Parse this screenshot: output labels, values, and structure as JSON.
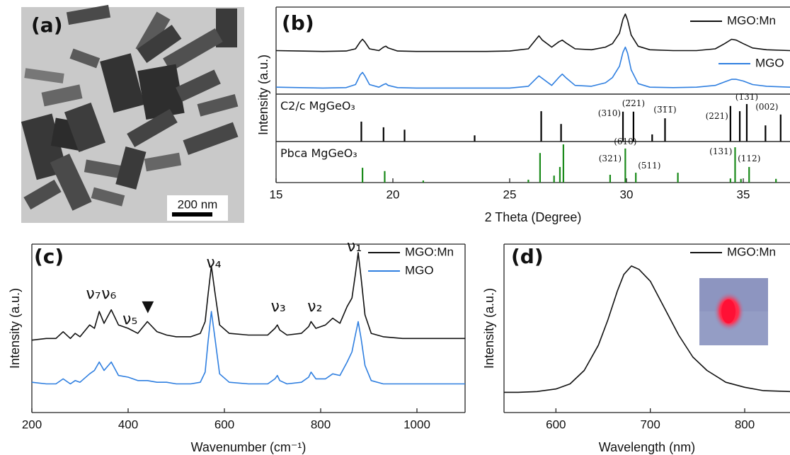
{
  "figure": {
    "panel_labels": [
      "(a)",
      "(b)",
      "(c)",
      "(d)"
    ]
  },
  "image_panel": {
    "scale_bar": "200 nm"
  },
  "chart_data": [
    {
      "type": "line",
      "ylabel": "Intensity (a.u.)",
      "xlim": [
        15,
        37
      ],
      "ylim": [
        0,
        100
      ],
      "x": [
        15,
        16,
        17,
        18,
        18.4,
        18.6,
        18.7,
        18.8,
        19.0,
        19.4,
        19.6,
        19.7,
        19.8,
        20.2,
        21,
        22,
        23,
        24,
        25,
        25.8,
        26.1,
        26.25,
        26.4,
        26.8,
        27.1,
        27.25,
        27.4,
        27.8,
        28.5,
        29.1,
        29.4,
        29.7,
        29.85,
        29.95,
        30.05,
        30.2,
        30.5,
        31,
        32,
        33,
        33.8,
        34.2,
        34.5,
        34.7,
        35,
        35.4,
        36,
        37
      ],
      "series": [
        {
          "name": "MGO:Mn",
          "color": "#111111",
          "values": [
            50,
            49.5,
            49,
            49.5,
            52,
            60,
            63,
            60,
            52,
            50,
            54,
            55,
            53,
            49.5,
            49,
            49,
            49,
            49,
            49.5,
            52,
            62,
            67,
            62,
            54,
            60,
            62,
            59,
            52,
            51,
            54,
            58,
            70,
            86,
            92,
            85,
            68,
            55,
            51,
            50,
            50,
            52,
            58,
            63,
            62,
            58,
            53,
            51,
            50
          ]
        },
        {
          "name": "MGO",
          "color": "#2f7fe0",
          "values": [
            8,
            7.5,
            7,
            7.5,
            11,
            22,
            25,
            21,
            11,
            8,
            11,
            12,
            10,
            7.5,
            7,
            7,
            7,
            7,
            7,
            9,
            17,
            21,
            18,
            10,
            19,
            23,
            19,
            10,
            9,
            13,
            19,
            32,
            48,
            54,
            47,
            28,
            12,
            8,
            7.5,
            8,
            10,
            14,
            17,
            17,
            15,
            11,
            9,
            8
          ]
        }
      ]
    },
    {
      "type": "stick",
      "title": "C2/c MgGeO₃",
      "color": "#000000",
      "label_color": "#2e6e8e",
      "xlim": [
        15,
        37
      ],
      "ylim": [
        0,
        100
      ],
      "x": [
        18.65,
        19.6,
        20.5,
        23.5,
        26.35,
        27.2,
        29.85,
        30.3,
        31.1,
        31.65,
        34.45,
        34.85,
        35.15,
        35.95,
        36.6
      ],
      "values": [
        42,
        30,
        25,
        13,
        64,
        37,
        63,
        63,
        15,
        49,
        75,
        64,
        79,
        34,
        57
      ],
      "labels": [
        null,
        null,
        null,
        null,
        null,
        null,
        "(310)",
        "(2̅21)",
        null,
        "(3̅1̅1̅)",
        "(221)",
        null,
        "(1̅31)",
        "(002)",
        null
      ]
    },
    {
      "type": "stick",
      "title": "Pbca MgGeO₃",
      "color": "#1a8a1a",
      "label_color": "#111111",
      "xlim": [
        15,
        37
      ],
      "ylim": [
        0,
        100
      ],
      "xlabel": "2 Theta (Degree)",
      "xticks": [
        15,
        20,
        25,
        30,
        35
      ],
      "x": [
        18.7,
        19.65,
        21.3,
        25.8,
        26.3,
        26.9,
        27.15,
        27.3,
        29.3,
        29.95,
        30.4,
        32.2,
        34.45,
        34.65,
        34.9,
        35.25,
        36.4
      ],
      "values": [
        36,
        28,
        5,
        7,
        72,
        17,
        38,
        93,
        19,
        83,
        24,
        24,
        10,
        86,
        9,
        38,
        9
      ],
      "labels": [
        null,
        null,
        null,
        null,
        null,
        null,
        null,
        null,
        "(321)",
        "(610)",
        "(511)",
        null,
        null,
        "(131)",
        null,
        "(112)",
        null
      ]
    },
    {
      "type": "line",
      "xlabel": "Wavenumber (cm⁻¹)",
      "ylabel": "Intensity (a.u.)",
      "xlim": [
        200,
        1100
      ],
      "ylim": [
        0,
        100
      ],
      "xticks": [
        200,
        400,
        600,
        800,
        1000
      ],
      "legend": "upper right",
      "annotations": [
        "ν₇",
        "ν₆",
        "ν₅",
        "▼",
        "ν₄",
        "ν₃",
        "ν₂",
        "ν₁"
      ],
      "x": [
        200,
        230,
        250,
        265,
        280,
        290,
        300,
        320,
        330,
        340,
        350,
        365,
        380,
        400,
        420,
        440,
        460,
        480,
        500,
        530,
        550,
        560,
        566,
        573,
        580,
        590,
        610,
        650,
        690,
        705,
        710,
        715,
        730,
        760,
        775,
        780,
        790,
        810,
        825,
        840,
        855,
        865,
        872,
        878,
        884,
        892,
        905,
        930,
        970,
        1020,
        1100
      ],
      "series": [
        {
          "name": "MGO:Mn",
          "color": "#111111",
          "values": [
            43,
            44,
            44,
            48,
            44,
            47,
            45,
            52,
            50,
            60,
            53,
            61,
            52,
            50,
            47,
            54,
            48,
            46,
            45,
            45,
            47,
            54,
            70,
            87,
            72,
            52,
            47,
            46,
            46,
            50,
            52,
            49,
            46,
            47,
            51,
            54,
            50,
            52,
            56,
            53,
            63,
            68,
            82,
            95,
            80,
            58,
            47,
            45,
            44,
            44,
            44
          ]
        },
        {
          "name": "MGO",
          "color": "#2f7fe0",
          "values": [
            18,
            17,
            17,
            20,
            17,
            19,
            18,
            23,
            25,
            30,
            25,
            30,
            22,
            21,
            19,
            19,
            18,
            18,
            17,
            17,
            18,
            24,
            42,
            60,
            45,
            23,
            18,
            17,
            17,
            20,
            22,
            19,
            17,
            18,
            21,
            24,
            20,
            20,
            23,
            22,
            30,
            36,
            46,
            54,
            44,
            28,
            19,
            17,
            17,
            17,
            17
          ]
        }
      ]
    },
    {
      "type": "line",
      "xlabel": "Wavelength (nm)",
      "ylabel": "Intensity (a.u.)",
      "xlim": [
        545,
        848
      ],
      "ylim": [
        0,
        100
      ],
      "xticks": [
        600,
        700,
        800
      ],
      "legend": "upper right",
      "x": [
        545,
        560,
        580,
        600,
        615,
        630,
        645,
        655,
        665,
        672,
        680,
        688,
        700,
        715,
        730,
        745,
        760,
        780,
        800,
        820,
        848
      ],
      "series": [
        {
          "name": "MGO:Mn",
          "color": "#111111",
          "values": [
            12,
            12,
            12.5,
            14,
            17,
            25,
            40,
            55,
            72,
            82,
            87,
            85,
            78,
            62,
            46,
            33,
            25,
            18,
            15,
            13,
            12.5
          ]
        }
      ]
    }
  ]
}
